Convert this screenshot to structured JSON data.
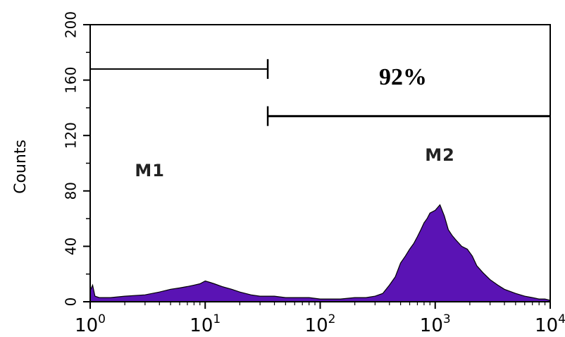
{
  "chart_data": {
    "type": "area",
    "title": "",
    "xlabel": "",
    "ylabel": "Counts",
    "x_scale": "log",
    "xlim": [
      1,
      10000
    ],
    "ylim": [
      0,
      200
    ],
    "x_ticks": [
      {
        "base": "10",
        "exp": "0"
      },
      {
        "base": "10",
        "exp": "1"
      },
      {
        "base": "10",
        "exp": "2"
      },
      {
        "base": "10",
        "exp": "3"
      },
      {
        "base": "10",
        "exp": "4"
      }
    ],
    "y_ticks": [
      "0",
      "40",
      "80",
      "120",
      "160",
      "200"
    ],
    "grid": false,
    "fill_color": "#5a13b4",
    "series": [
      {
        "x": [
          1.0,
          1.05,
          1.1,
          1.2,
          1.5,
          2,
          3,
          4,
          5,
          6,
          7,
          8,
          9,
          10,
          11,
          12,
          14,
          17,
          20,
          25,
          30,
          40,
          50,
          60,
          70,
          80,
          100,
          120,
          150,
          200,
          250,
          300,
          350,
          400,
          450,
          500,
          550,
          600,
          650,
          700,
          750,
          800,
          850,
          900,
          1000,
          1100,
          1200,
          1300,
          1400,
          1500,
          1700,
          1900,
          2100,
          2300,
          2600,
          3000,
          3500,
          4000,
          5000,
          6000,
          7000,
          8000,
          9000,
          10000
        ],
        "y": [
          8,
          12,
          4,
          3,
          3,
          4,
          5,
          7,
          9,
          10,
          11,
          12,
          13,
          15,
          14,
          13,
          11,
          9,
          7,
          5,
          4,
          4,
          3,
          3,
          3,
          3,
          2,
          2,
          2,
          3,
          3,
          4,
          6,
          12,
          18,
          28,
          33,
          38,
          42,
          47,
          52,
          57,
          60,
          64,
          66,
          70,
          62,
          52,
          48,
          45,
          40,
          38,
          33,
          26,
          21,
          16,
          12,
          9,
          6,
          4,
          3,
          2,
          2,
          1
        ]
      }
    ],
    "markers": [
      {
        "label": "M1",
        "from": 1,
        "to": 35,
        "y": 168
      },
      {
        "label": "M2",
        "from": 35,
        "to": 10000,
        "y": 134
      }
    ],
    "annotations": [
      "92%"
    ]
  }
}
